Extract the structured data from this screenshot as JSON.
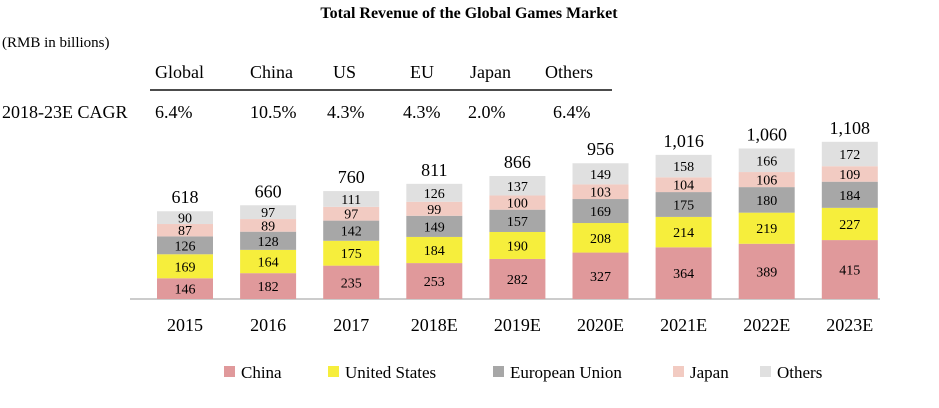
{
  "chart_data": {
    "type": "bar",
    "stacked": true,
    "title": "Total Revenue of the Global Games Market",
    "unit_note": "(RMB in billions)",
    "categories": [
      "2015",
      "2016",
      "2017",
      "2018E",
      "2019E",
      "2020E",
      "2021E",
      "2022E",
      "2023E"
    ],
    "series": [
      {
        "name": "China",
        "color": "#e0999b",
        "values": [
          146,
          182,
          235,
          253,
          282,
          327,
          364,
          389,
          415
        ]
      },
      {
        "name": "United States",
        "color": "#f6ee3c",
        "values": [
          169,
          164,
          175,
          184,
          190,
          208,
          214,
          219,
          227
        ]
      },
      {
        "name": "European Union",
        "color": "#a7a7a7",
        "values": [
          126,
          128,
          142,
          149,
          157,
          169,
          175,
          180,
          184
        ]
      },
      {
        "name": "Japan",
        "color": "#f2cbc2",
        "values": [
          87,
          89,
          97,
          99,
          100,
          103,
          104,
          106,
          109
        ]
      },
      {
        "name": "Others",
        "color": "#e0e0e0",
        "values": [
          90,
          97,
          111,
          126,
          137,
          149,
          158,
          166,
          172
        ]
      }
    ],
    "totals": [
      "618",
      "660",
      "760",
      "811",
      "866",
      "956",
      "1,016",
      "1,060",
      "1,108"
    ],
    "cagr": {
      "label": "2018-23E CAGR",
      "headers": [
        "Global",
        "China",
        "US",
        "EU",
        "Japan",
        "Others"
      ],
      "values": [
        "6.4%",
        "10.5%",
        "4.3%",
        "4.3%",
        "2.0%",
        "6.4%"
      ]
    },
    "legend_position": "bottom",
    "grid": false,
    "ylim": [
      0,
      1150
    ]
  }
}
